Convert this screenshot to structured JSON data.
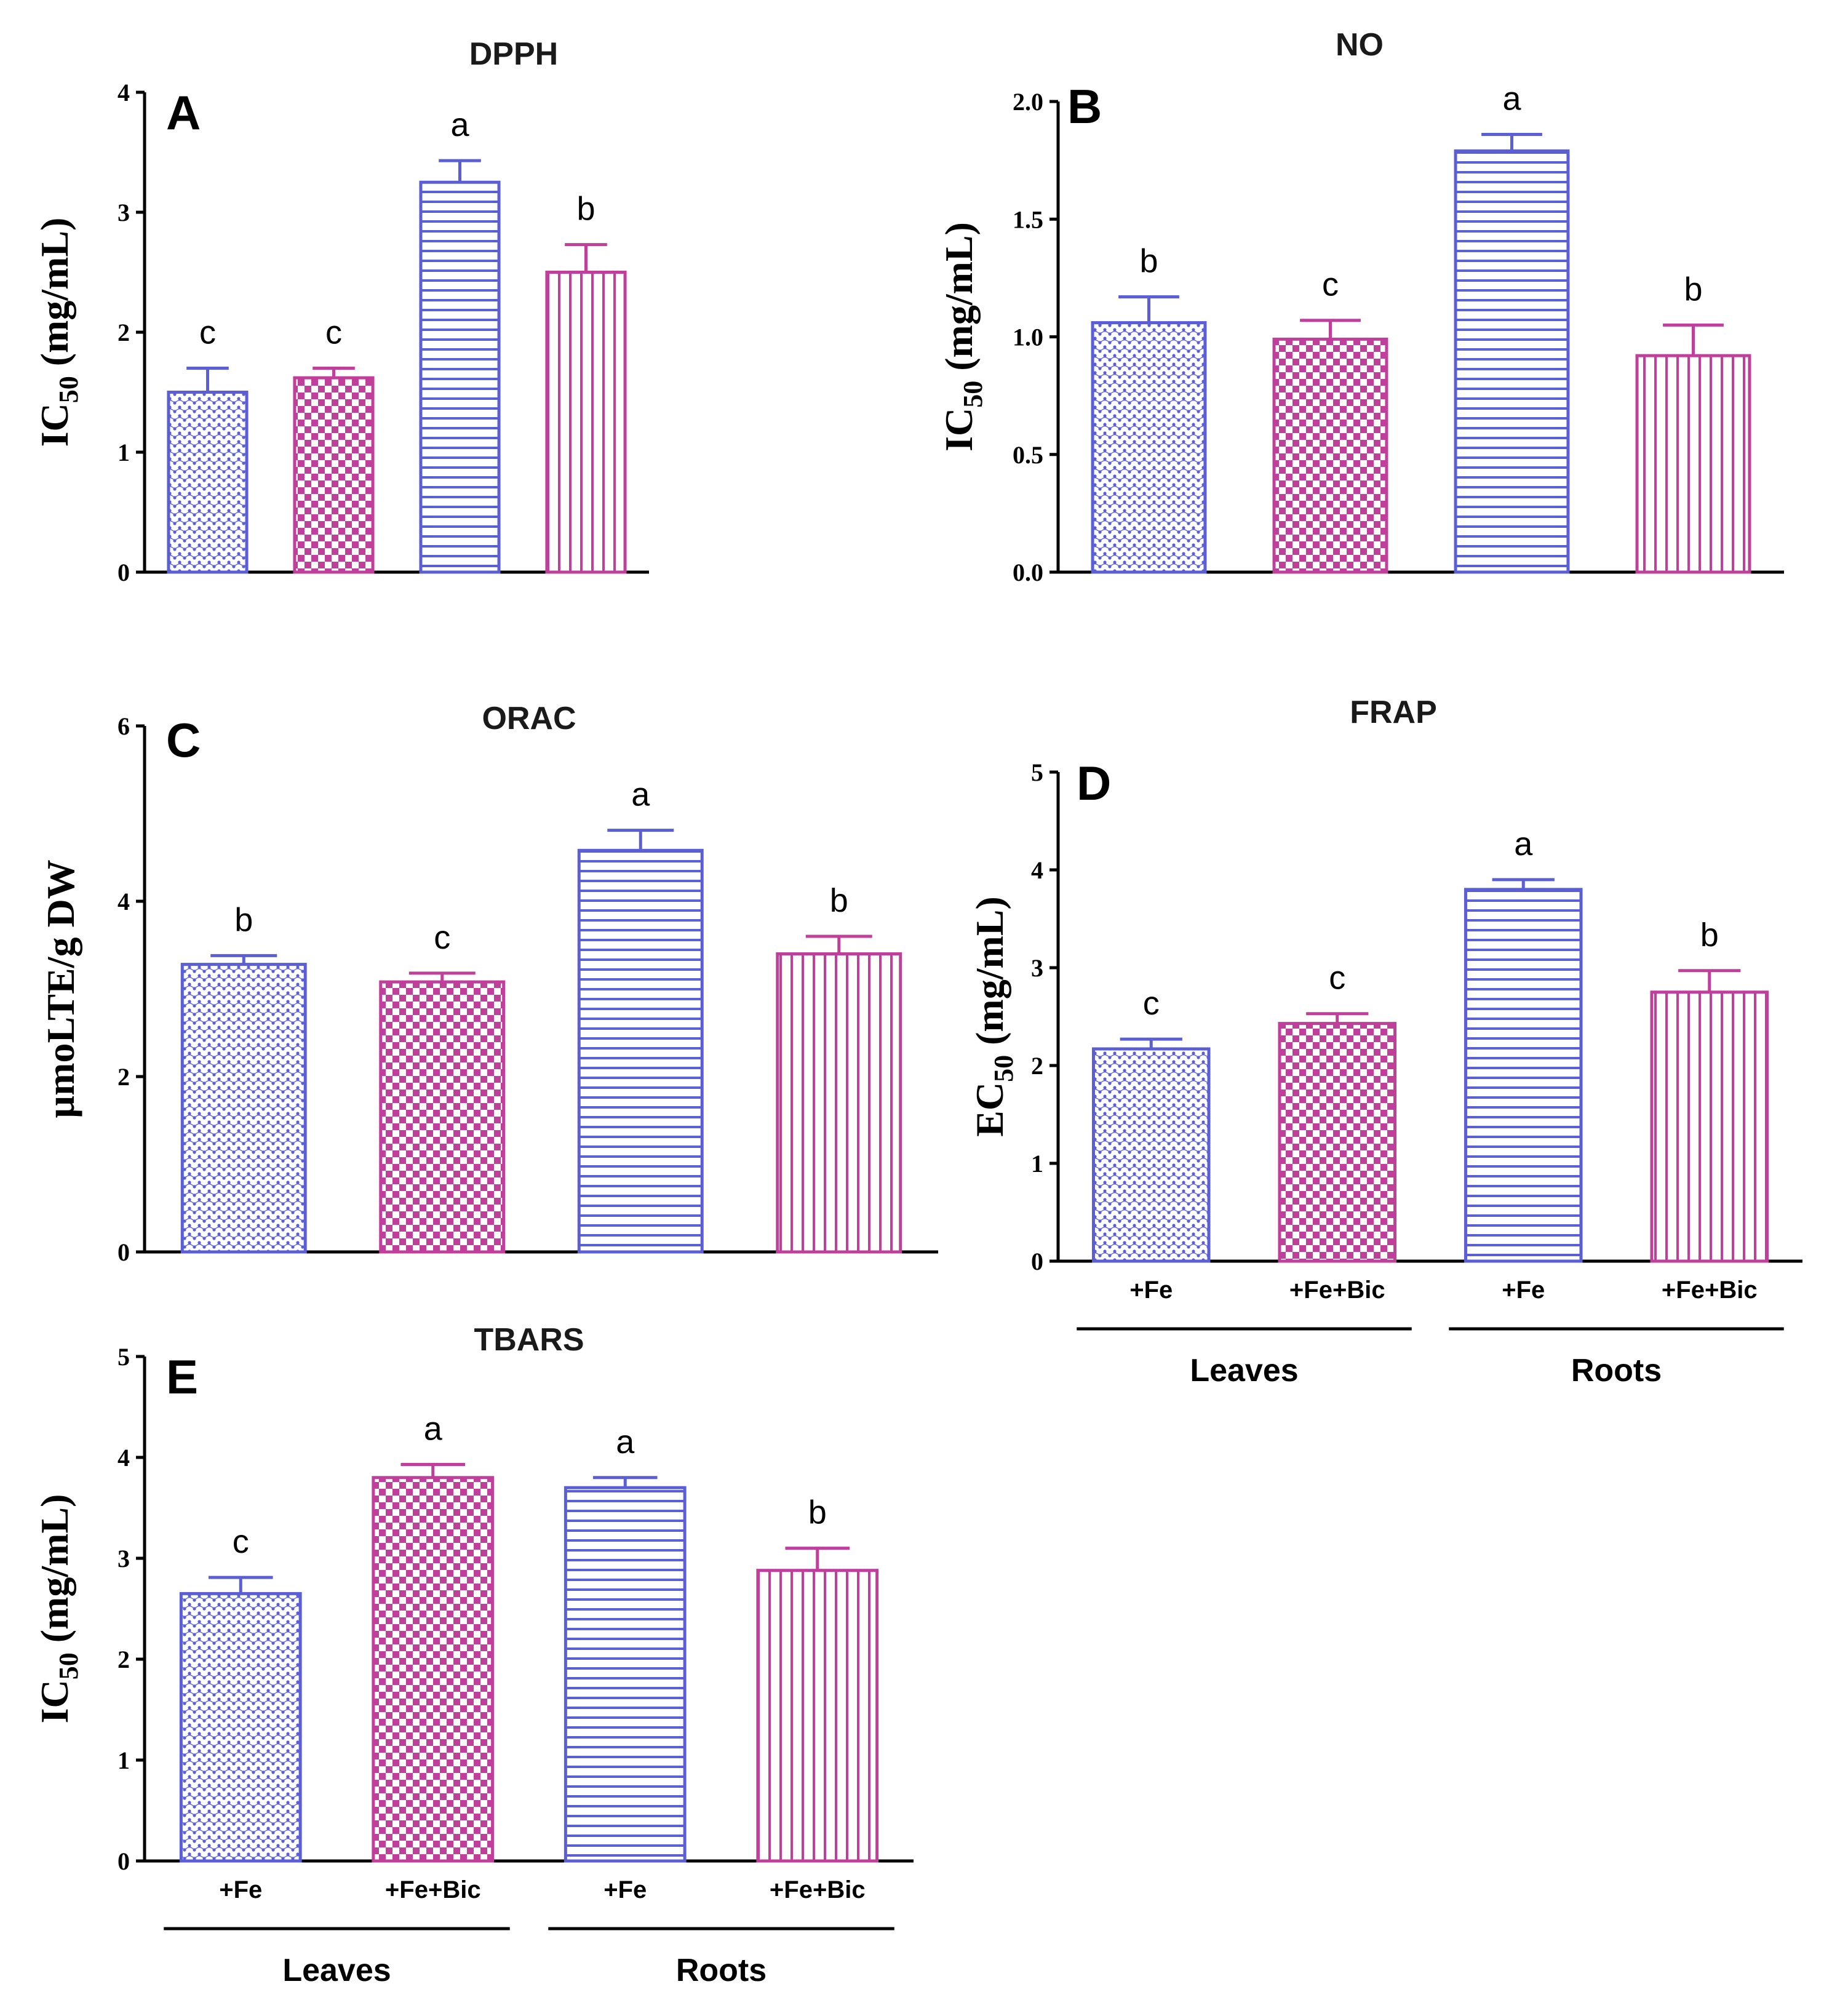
{
  "colors": {
    "leaves": "#5b5fd6",
    "roots_bic": "#c03f9a",
    "axis": "#000000"
  },
  "x_categories": [
    "+Fe",
    "+Fe+Bic",
    "+Fe",
    "+Fe+Bic"
  ],
  "x_groups": [
    "Leaves",
    "Roots"
  ],
  "chart_data": [
    {
      "type": "bar",
      "panel": "A",
      "title": "DPPH",
      "ylabel_main": "IC",
      "ylabel_sub": "50",
      "ylabel_rest": " (mg/mL)",
      "categories": [
        "+Fe",
        "+Fe+Bic",
        "+Fe",
        "+Fe+Bic"
      ],
      "values": [
        1.5,
        1.62,
        3.25,
        2.5
      ],
      "errors": [
        0.2,
        0.08,
        0.18,
        0.23
      ],
      "significance": [
        "c",
        "c",
        "a",
        "b"
      ],
      "ylim": [
        0,
        4
      ],
      "yticks": [
        "0",
        "1",
        "2",
        "3",
        "4"
      ],
      "show_xlabels": false
    },
    {
      "type": "bar",
      "panel": "B",
      "title": "NO",
      "ylabel_main": "IC",
      "ylabel_sub": "50",
      "ylabel_rest": " (mg/mL)",
      "categories": [
        "+Fe",
        "+Fe+Bic",
        "+Fe",
        "+Fe+Bic"
      ],
      "values": [
        1.06,
        0.99,
        1.79,
        0.92
      ],
      "errors": [
        0.11,
        0.08,
        0.07,
        0.13
      ],
      "significance": [
        "b",
        "c",
        "a",
        "b"
      ],
      "ylim": [
        0,
        2.0
      ],
      "yticks": [
        "0.0",
        "0.5",
        "1.0",
        "1.5",
        "2.0"
      ],
      "show_xlabels": false
    },
    {
      "type": "bar",
      "panel": "C",
      "title": "ORAC",
      "ylabel_main": "µmoLTE/g DW",
      "ylabel_sub": "",
      "ylabel_rest": "",
      "categories": [
        "+Fe",
        "+Fe+Bic",
        "+Fe",
        "+Fe+Bic"
      ],
      "values": [
        3.28,
        3.08,
        4.58,
        3.4
      ],
      "errors": [
        0.1,
        0.1,
        0.23,
        0.2
      ],
      "significance": [
        "b",
        "c",
        "a",
        "b"
      ],
      "ylim": [
        0,
        6
      ],
      "yticks": [
        "0",
        "2",
        "4",
        "6"
      ],
      "show_xlabels": false
    },
    {
      "type": "bar",
      "panel": "D",
      "title": "FRAP",
      "ylabel_main": "EC",
      "ylabel_sub": "50",
      "ylabel_rest": " (mg/mL)",
      "categories": [
        "+Fe",
        "+Fe+Bic",
        "+Fe",
        "+Fe+Bic"
      ],
      "values": [
        2.17,
        2.43,
        3.8,
        2.75
      ],
      "errors": [
        0.1,
        0.1,
        0.1,
        0.22
      ],
      "significance": [
        "c",
        "c",
        "a",
        "b"
      ],
      "ylim": [
        0,
        5
      ],
      "yticks": [
        "0",
        "1",
        "2",
        "3",
        "4",
        "5"
      ],
      "show_xlabels": true
    },
    {
      "type": "bar",
      "panel": "E",
      "title": "TBARS",
      "ylabel_main": "IC",
      "ylabel_sub": "50",
      "ylabel_rest": " (mg/mL)",
      "categories": [
        "+Fe",
        "+Fe+Bic",
        "+Fe",
        "+Fe+Bic"
      ],
      "values": [
        2.65,
        3.8,
        3.7,
        2.88
      ],
      "errors": [
        0.16,
        0.13,
        0.1,
        0.22
      ],
      "significance": [
        "c",
        "a",
        "a",
        "b"
      ],
      "ylim": [
        0,
        5
      ],
      "yticks": [
        "0",
        "1",
        "2",
        "3",
        "4",
        "5"
      ],
      "show_xlabels": true
    }
  ]
}
